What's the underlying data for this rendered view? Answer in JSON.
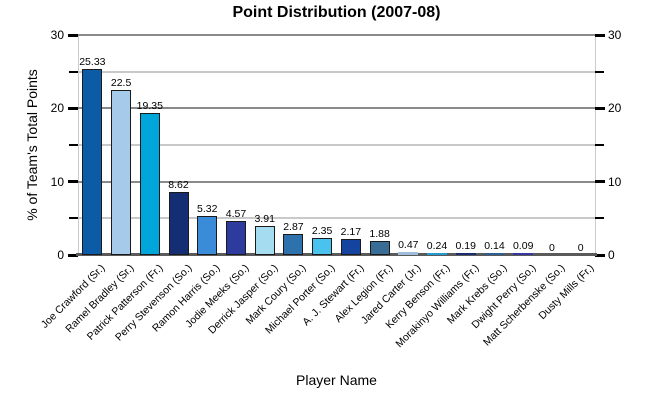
{
  "chart_data": {
    "type": "bar",
    "title": "Point Distribution (2007-08)",
    "xlabel": "Player Name",
    "ylabel": "% of Team's Total Points",
    "ylim": [
      0,
      30
    ],
    "yticks_major": [
      0,
      10,
      20,
      30
    ],
    "yticks_minor": [
      5,
      15,
      25
    ],
    "grid": true,
    "legend": "none",
    "value_labels": true,
    "categories": [
      "Joe Crawford (Sr.)",
      "Ramel Bradley (Sr.)",
      "Patrick Patterson (Fr.)",
      "Perry Stevenson (So.)",
      "Ramon Harris (So.)",
      "Jodie Meeks (So.)",
      "Derrick Jasper (So.)",
      "Mark Coury (So.)",
      "Michael Porter (So.)",
      "A. J. Stewart (Fr.)",
      "Alex Legion (Fr.)",
      "Jared Carter (Jr.)",
      "Kerry Benson (Fr.)",
      "Morakinyo Williams (Fr.)",
      "Mark Krebs (So.)",
      "Dwight Perry (So.)",
      "Matt Scherbenske (So.)",
      "Dusty Mills (Fr.)"
    ],
    "values": [
      25.33,
      22.5,
      19.35,
      8.62,
      5.32,
      4.57,
      3.91,
      2.87,
      2.35,
      2.17,
      1.88,
      0.47,
      0.24,
      0.19,
      0.14,
      0.09,
      0,
      0
    ],
    "bar_colors": [
      "#0b5ba7",
      "#a6cbea",
      "#00a5da",
      "#152d72",
      "#3a8bd8",
      "#2e3b9e",
      "#a5dcf0",
      "#2d72ad",
      "#49c2ee",
      "#1443a0",
      "#3a6d95",
      "#9fbedb",
      "#1f9ad2",
      "#1b2d70",
      "#2d5f90",
      "#3737a0",
      "#3a6d95",
      "#0b5ba7"
    ]
  },
  "colors": {
    "grid_major": "#8a8a8a",
    "grid_minor": "#c9c9c9",
    "axis_side": "#cccccc",
    "baseline": "#5a5a5a",
    "tick": "#000000",
    "bar_border": "#1a1a1a",
    "text": "#000000",
    "background": "#ffffff"
  }
}
